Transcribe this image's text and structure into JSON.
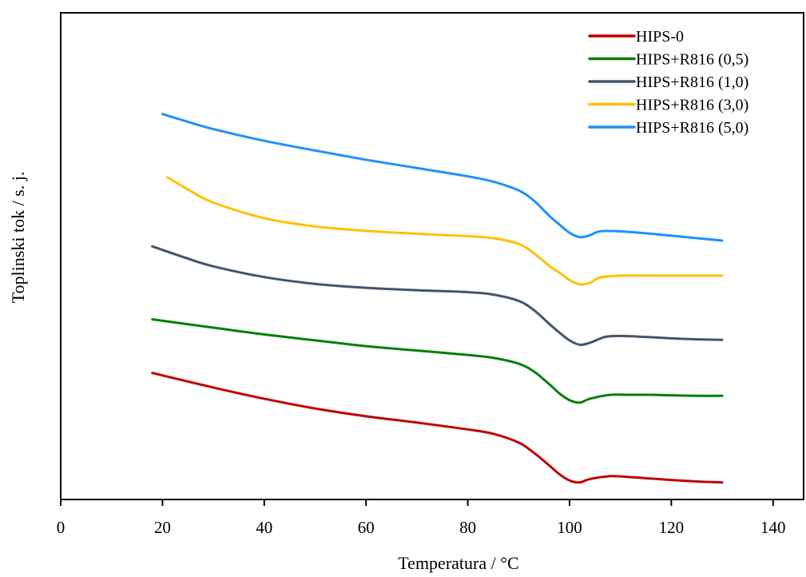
{
  "chart_data": {
    "type": "line",
    "title": "",
    "xlabel": "Temperatura  / °C",
    "ylabel": "Toplinski tok / s. j.",
    "xlim": [
      0,
      146
    ],
    "ylim": [
      0,
      1
    ],
    "xticks": [
      0,
      20,
      40,
      60,
      80,
      100,
      120,
      140
    ],
    "xtick_labels": [
      "0",
      "20",
      "40",
      "60",
      "80",
      "100",
      "120",
      "140"
    ],
    "yticks_shown": false,
    "grid": false,
    "legend_position": "top-right",
    "series": [
      {
        "name": "HIPS-0",
        "color": "#C00000",
        "x": [
          18,
          30,
          40,
          50,
          60,
          70,
          80,
          85,
          90,
          93,
          96,
          98,
          100,
          102,
          104,
          108,
          112,
          116,
          120,
          125,
          130
        ],
        "y": [
          0.26,
          0.23,
          0.207,
          0.187,
          0.171,
          0.158,
          0.144,
          0.135,
          0.117,
          0.096,
          0.07,
          0.052,
          0.039,
          0.035,
          0.042,
          0.048,
          0.046,
          0.043,
          0.04,
          0.037,
          0.035
        ]
      },
      {
        "name": "HIPS+R816 (0,5)",
        "color": "#008000",
        "x": [
          18,
          30,
          40,
          50,
          60,
          70,
          80,
          85,
          90,
          93,
          96,
          98,
          100,
          102,
          104,
          108,
          112,
          116,
          120,
          125,
          130
        ],
        "y": [
          0.37,
          0.353,
          0.339,
          0.327,
          0.315,
          0.306,
          0.297,
          0.291,
          0.279,
          0.263,
          0.237,
          0.218,
          0.204,
          0.199,
          0.207,
          0.215,
          0.215,
          0.215,
          0.214,
          0.213,
          0.213
        ]
      },
      {
        "name": "HIPS+R816 (1,0)",
        "color": "#44546A",
        "x": [
          18,
          25,
          30,
          40,
          50,
          60,
          70,
          80,
          85,
          90,
          93,
          96,
          98,
          100,
          102,
          104,
          107,
          110,
          115,
          120,
          125,
          130
        ],
        "y": [
          0.52,
          0.495,
          0.479,
          0.457,
          0.443,
          0.435,
          0.43,
          0.426,
          0.421,
          0.408,
          0.389,
          0.361,
          0.343,
          0.327,
          0.318,
          0.322,
          0.334,
          0.336,
          0.334,
          0.331,
          0.329,
          0.328
        ]
      },
      {
        "name": "HIPS+R816 (3,0)",
        "color": "#FFC000",
        "x": [
          21,
          25,
          30,
          40,
          50,
          60,
          70,
          80,
          85,
          90,
          93,
          96,
          98,
          100,
          102,
          104,
          106,
          110,
          115,
          120,
          125,
          130
        ],
        "y": [
          0.662,
          0.637,
          0.61,
          0.578,
          0.561,
          0.552,
          0.546,
          0.541,
          0.537,
          0.525,
          0.506,
          0.48,
          0.466,
          0.451,
          0.442,
          0.445,
          0.456,
          0.46,
          0.46,
          0.46,
          0.46,
          0.46
        ]
      },
      {
        "name": "HIPS+R816 (5,0)",
        "color": "#1E90FF",
        "x": [
          20,
          25,
          30,
          40,
          50,
          60,
          70,
          80,
          85,
          90,
          93,
          96,
          98,
          100,
          102,
          104,
          106,
          110,
          115,
          120,
          125,
          130
        ],
        "y": [
          0.792,
          0.776,
          0.761,
          0.737,
          0.717,
          0.698,
          0.681,
          0.664,
          0.653,
          0.635,
          0.614,
          0.583,
          0.565,
          0.548,
          0.539,
          0.543,
          0.551,
          0.551,
          0.547,
          0.542,
          0.537,
          0.532
        ]
      }
    ]
  }
}
